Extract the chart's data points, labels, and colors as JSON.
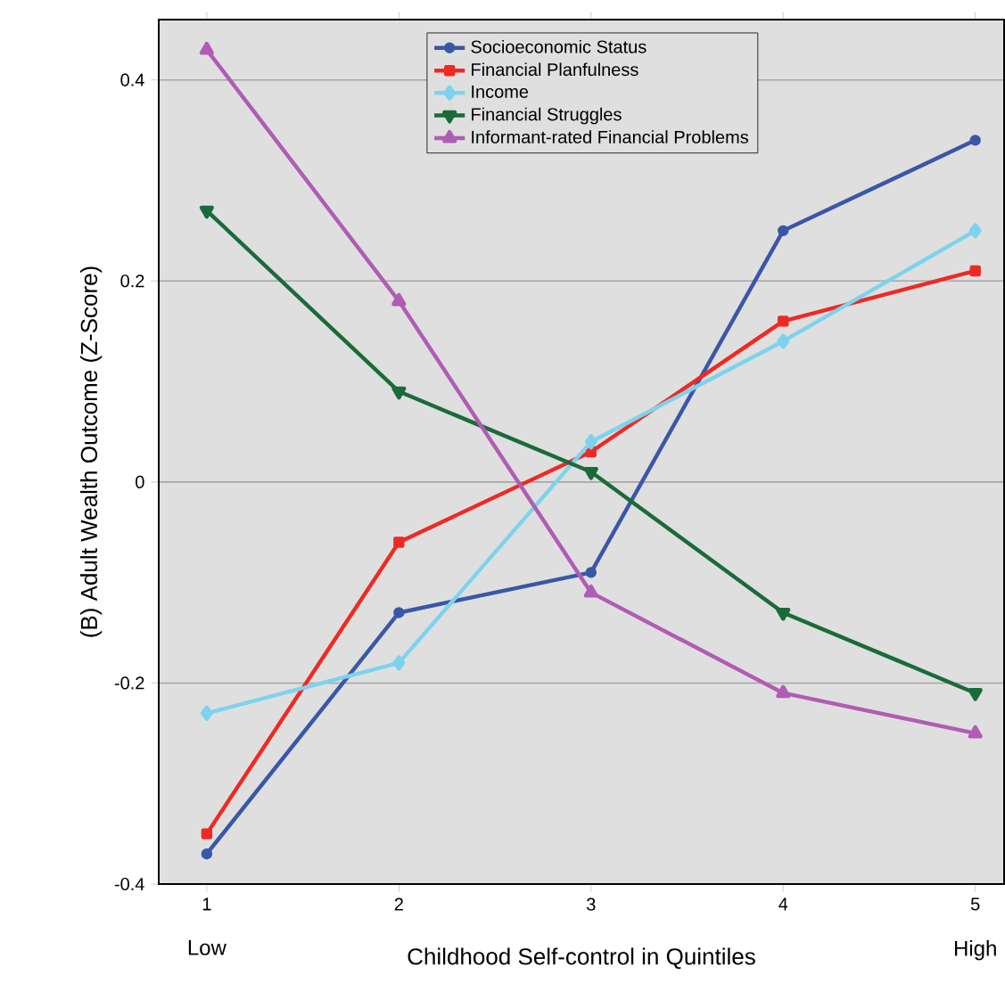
{
  "chart_data": {
    "type": "line",
    "xlabel": "Childhood Self-control in Quintiles",
    "ylabel": "(B) Adult Wealth Outcome (Z-Score)",
    "x": [
      1,
      2,
      3,
      4,
      5
    ],
    "xlim": [
      0.75,
      5.15
    ],
    "ylim": [
      -0.4,
      0.46
    ],
    "xticks": [
      1,
      2,
      3,
      4,
      5
    ],
    "yticks": [
      -0.4,
      -0.2,
      0,
      0.2,
      0.4
    ],
    "grid": "y",
    "legend": "top",
    "line_style": "solid",
    "annotations": [
      "Low",
      "High"
    ],
    "series": [
      {
        "name": "Socioeconomic Status",
        "color": "#3a57a7",
        "marker": "circle",
        "values": [
          -0.37,
          -0.13,
          -0.09,
          0.25,
          0.34
        ]
      },
      {
        "name": "Financial Planfulness",
        "color": "#ee2a24",
        "marker": "square",
        "values": [
          -0.35,
          -0.06,
          0.03,
          0.16,
          0.21
        ]
      },
      {
        "name": "Income",
        "color": "#7dd3ee",
        "marker": "diamond",
        "values": [
          -0.23,
          -0.18,
          0.04,
          0.14,
          0.25
        ]
      },
      {
        "name": "Financial Struggles",
        "color": "#1a6b3a",
        "marker": "triangle-down",
        "values": [
          0.27,
          0.09,
          0.01,
          -0.13,
          -0.21
        ]
      },
      {
        "name": "Informant-rated Financial Problems",
        "color": "#b05cb4",
        "marker": "triangle",
        "values": [
          0.43,
          0.18,
          -0.11,
          -0.21,
          -0.25
        ]
      }
    ]
  }
}
